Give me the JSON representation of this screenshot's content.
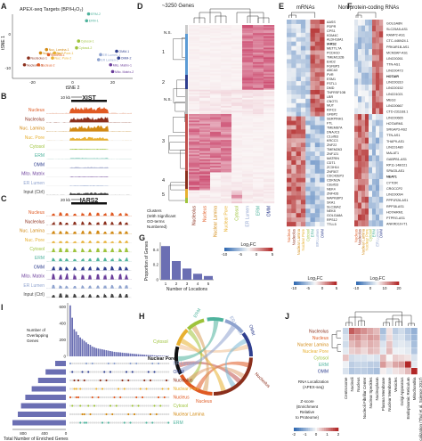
{
  "panel_letters": [
    "A",
    "B",
    "C",
    "D",
    "E",
    "F",
    "G",
    "H",
    "I",
    "J"
  ],
  "tracks": [
    "Nucleus",
    "Nucleolus",
    "Nuc. Lamina",
    "Nuc. Pore",
    "Cytosol",
    "ERM",
    "OMM",
    "Mito. Matrix",
    "ER Lumen",
    "Input (Ctrl)"
  ],
  "track_colors": [
    "#e05a23",
    "#8b2f1c",
    "#d28a14",
    "#e8b030",
    "#9ec33b",
    "#4fb39d",
    "#2f3f8f",
    "#6a3d9a",
    "#8fa3cf",
    "#444444"
  ],
  "panel_a": {
    "title": "APEX-seq Targets (BP/H₂O₂)",
    "xlabel": "tSNE 2",
    "ylabel": "tSNE 1",
    "xticks": [
      "-20",
      "0",
      "20"
    ],
    "yticks": [
      "0",
      "-10"
    ],
    "points": [
      {
        "label": "Nucleolus-1",
        "x": -22,
        "y": -7,
        "color": "#8b2f1c"
      },
      {
        "label": "Nucleolus-2",
        "x": -24,
        "y": -9,
        "color": "#8b2f1c"
      },
      {
        "label": "Nuc. Lamina-1",
        "x": -13,
        "y": -4.5,
        "color": "#d28a14"
      },
      {
        "label": "Nuc. Lamina-2",
        "x": -16,
        "y": -5.5,
        "color": "#d28a14"
      },
      {
        "label": "Nucleus-1",
        "x": -12,
        "y": -6,
        "color": "#e05a23"
      },
      {
        "label": "Nucleus-2",
        "x": -17,
        "y": -9,
        "color": "#e05a23"
      },
      {
        "label": "Nuc. Pore-1",
        "x": -9,
        "y": -5.5,
        "color": "#e8b030"
      },
      {
        "label": "Nuc. Pore-2",
        "x": -10,
        "y": -7,
        "color": "#e8b030"
      },
      {
        "label": "Cytosol-1",
        "x": 3,
        "y": -2,
        "color": "#9ec33b"
      },
      {
        "label": "Cytosol-2",
        "x": 2,
        "y": -4,
        "color": "#9ec33b"
      },
      {
        "label": "ERM-1",
        "x": 7,
        "y": 4,
        "color": "#4fb39d"
      },
      {
        "label": "ERM-2",
        "x": 8,
        "y": 6,
        "color": "#4fb39d"
      },
      {
        "label": "ER Lumen-1",
        "x": 14,
        "y": -6,
        "color": "#8fa3cf"
      },
      {
        "label": "ER Lumen-2",
        "x": 13,
        "y": -7.5,
        "color": "#8fa3cf"
      },
      {
        "label": "OMM-1",
        "x": 22,
        "y": -5,
        "color": "#2f3f8f"
      },
      {
        "label": "OMM-2",
        "x": 23,
        "y": -7,
        "color": "#2f3f8f"
      },
      {
        "label": "Mito. Matrix-1",
        "x": 19,
        "y": -9,
        "color": "#6a3d9a"
      },
      {
        "label": "Mito. Matrix-2",
        "x": 20,
        "y": -11,
        "color": "#6a3d9a"
      }
    ]
  },
  "panel_b": {
    "gene": "XIST",
    "scale": "10 kb"
  },
  "panel_c": {
    "gene": "IARS2",
    "scale": "20 kb"
  },
  "panel_d": {
    "title": "~3250 Genes",
    "ns_label": "N.S.",
    "cluster_nums": [
      "1",
      "2",
      "3",
      "4",
      "5"
    ],
    "clusters_caption": [
      "Clusters",
      "(With Significant",
      "GO-terms",
      "Numbered)"
    ],
    "columns": [
      "Nucleolus",
      "Nucleus",
      "Nuclear Lamina",
      "Nuclear Pore",
      "Cytosol",
      "ER Lumen",
      "ERM",
      "OMM"
    ]
  },
  "panel_e": {
    "title": "mRNAs",
    "genes": [
      "AASS",
      "PDPR",
      "CPS1",
      "KDM4C",
      "ALDH18A1",
      "IARS2",
      "METTL7A",
      "PCDH10",
      "TMEM132B",
      "EHD2",
      "FGFBP3",
      "ABCA3",
      "PVR",
      "ESM1",
      "FSTL1",
      "DMD",
      "TNFRSF10B",
      "LBR",
      "CNOT1",
      "MUT",
      "KIFC3",
      "GFBP2",
      "SERPINH1",
      "FTL",
      "TMEM87A",
      "DNAJC3",
      "C1orf63",
      "KRCC3",
      "ZNF22",
      "TMEM263",
      "ZNF121",
      "MATRIN",
      "CDT1",
      "ZC3H14",
      "ZNF507",
      "CDC42EP3",
      "CDKN2A",
      "C8orf33",
      "NEK4",
      "ZNF426",
      "MAPK8IP3",
      "SKA1",
      "SLC38A2",
      "NEK8",
      "GOLGA8A",
      "RPS12",
      "TTLL5"
    ],
    "colorbar_title": "Log₂FC",
    "colorbar_ticks": [
      "-10",
      "-5",
      "0",
      "5"
    ]
  },
  "panel_f": {
    "title": "Non-protein-coding RNAs",
    "genes": [
      "GOLGA8N",
      "SLC25A5-AS1",
      "RAMP2-AS1",
      "CTC-446N24.1",
      "PRKAR1B-AS1",
      "MCM3AP-AS1",
      "LINC00261",
      "TTN-AS1",
      "LINC00473",
      "HOTAIR",
      "LINC00310",
      "LINC00152",
      "LINC01021",
      "MEG3",
      "LINC00667",
      "CTD-2311E8.1",
      "LINC00665",
      "HOTAIRM1",
      "SRGAP3-AS2",
      "TTN-AS1",
      "THAP9-AS1",
      "LINC01480",
      "MALAT1",
      "GABPB1-AS1",
      "RP11-148O21",
      "SPAG5-AS1",
      "NEAT1",
      "CYTOR",
      "CROCCP2",
      "LINC00094",
      "PPP1R26-AS1",
      "RPP38-AS1",
      "HOTAIRM1",
      "PTPRG-AS1",
      "ANKRD10-IT1"
    ],
    "colorbar_title": "Log₂FC",
    "colorbar_ticks": [
      "-10",
      "0",
      "10",
      "20"
    ]
  },
  "panel_g": {
    "xlabel": "Number of Locations",
    "ylabel": "Proportion of Genes",
    "xticks": [
      "1",
      "2",
      "3",
      "4",
      "5"
    ],
    "yticks": [
      "0",
      "0.2",
      "0.4"
    ]
  },
  "panel_h": {
    "colorbar_title": "Log₂FC",
    "colorbar_ticks": [
      "-10",
      "-5",
      "0",
      "5"
    ],
    "labels": [
      "ERM",
      "ER Lumen",
      "Cytosol",
      "Nuclear Pore",
      "Nucleolus",
      "Nucleus",
      "OMM"
    ]
  },
  "panel_i": {
    "ylabel": [
      "Number of",
      "Overlapping",
      "Genes"
    ],
    "yticks": [
      "0",
      "200",
      "400",
      "600"
    ],
    "xlabel": "Total Number of Enriched Genes",
    "xticks": [
      "0",
      "400",
      "800"
    ],
    "rows": [
      "ER Lumen",
      "OMM",
      "Nucleolus",
      "Nuclear Pore",
      "Nucleus",
      "Cytosol",
      "Nuclear Lamina",
      "ERM"
    ],
    "row_colors": [
      "#8fa3cf",
      "#2f3f8f",
      "#8b2f1c",
      "#e8b030",
      "#e05a23",
      "#9ec33b",
      "#d28a14",
      "#4fb39d"
    ]
  },
  "panel_j": {
    "rows": [
      "Nucleolus",
      "Nucleus",
      "Nuclear Lamina",
      "Nuclear Pore",
      "Cytosol",
      "ERM",
      "OMM"
    ],
    "row_colors": [
      "#8b2f1c",
      "#e05a23",
      "#d28a14",
      "#e8b030",
      "#9ec33b",
      "#4fb39d",
      "#2f3f8f"
    ],
    "columns": [
      "Centrosome",
      "Nucleoli",
      "Nucleus",
      "Nucleoli Fibrillar Center",
      "Nuclear Speckles",
      "Nucleoplasm",
      "Plasma Membrane",
      "Nuclear Membrane",
      "Vesicles",
      "Golgi Apparatus",
      "Endoplasmic Reticulum",
      "Mitochondria",
      "Protein Localization (Thul et al. Science 2017)"
    ],
    "legend_title": [
      "RNA Localization",
      "(APEX-seq)"
    ],
    "zscore_caption": [
      "Z-score",
      "(Enrichment",
      "Relative",
      "to Proteome)"
    ],
    "colorbar_ticks": [
      "-2",
      "-1",
      "0",
      "1",
      "2"
    ]
  },
  "chart_data": [
    {
      "type": "scatter",
      "panel": "A",
      "title": "APEX-seq Targets (BP/H₂O₂)",
      "xlabel": "tSNE 2",
      "ylabel": "tSNE 1",
      "xlim": [
        -30,
        30
      ],
      "ylim": [
        -13,
        8
      ]
    },
    {
      "type": "bar",
      "panel": "G",
      "categories": [
        "1",
        "2",
        "3",
        "4",
        "5"
      ],
      "values": [
        0.45,
        0.25,
        0.15,
        0.08,
        0.05
      ],
      "xlabel": "Number of Locations",
      "ylabel": "Proportion of Genes",
      "ylim": [
        0,
        0.5
      ]
    },
    {
      "type": "bar",
      "panel": "I-top",
      "ylabel": "Number of Overlapping Genes",
      "values": [
        620,
        470,
        330,
        300,
        260,
        230,
        210,
        190,
        170,
        150,
        140,
        120,
        110,
        100,
        95,
        90,
        85,
        80,
        75,
        70,
        65,
        60,
        55,
        52,
        50,
        48,
        45,
        42,
        40,
        38,
        35,
        33,
        30,
        28,
        26,
        24,
        22,
        20,
        18,
        16,
        15,
        14,
        12,
        11,
        10,
        9,
        8,
        7,
        6,
        5
      ],
      "ylim": [
        0,
        650
      ]
    },
    {
      "type": "bar",
      "panel": "I-left",
      "xlabel": "Total Number of Enriched Genes",
      "categories": [
        "ER Lumen",
        "OMM",
        "Nucleolus",
        "Nuclear Pore",
        "Nucleus",
        "Cytosol",
        "Nuclear Lamina",
        "ERM"
      ],
      "values": [
        200,
        380,
        520,
        640,
        760,
        840,
        900,
        1000
      ],
      "xlim": [
        0,
        1000
      ]
    },
    {
      "type": "heatmap",
      "panel": "J",
      "rows": [
        "Nucleolus",
        "Nucleus",
        "Nuclear Lamina",
        "Nuclear Pore",
        "Cytosol",
        "ERM",
        "OMM"
      ],
      "columns": [
        "Centrosome",
        "Nucleoli",
        "Nucleus",
        "Nucleoli Fibrillar Center",
        "Nuclear Speckles",
        "Nucleoplasm",
        "Plasma Membrane",
        "Nuclear Membrane",
        "Vesicles",
        "Golgi Apparatus",
        "Endoplasmic Reticulum",
        "Mitochondria"
      ],
      "values": [
        [
          -0.5,
          1.5,
          1.2,
          1.0,
          0.8,
          0.6,
          -0.8,
          0.2,
          -0.6,
          -0.4,
          -0.7,
          -1.0
        ],
        [
          -0.3,
          0.9,
          1.0,
          0.7,
          0.9,
          0.8,
          -0.6,
          0.3,
          -0.4,
          -0.3,
          -0.6,
          -0.9
        ],
        [
          -0.4,
          0.6,
          0.8,
          0.5,
          0.7,
          0.6,
          -0.3,
          0.5,
          -0.3,
          -0.2,
          -0.3,
          -0.8
        ],
        [
          -0.2,
          0.4,
          0.5,
          0.3,
          0.6,
          0.5,
          -0.2,
          0.6,
          -0.1,
          -0.1,
          -0.2,
          -0.7
        ],
        [
          0.5,
          -0.4,
          -0.3,
          -0.3,
          -0.2,
          -0.3,
          0.6,
          0.0,
          0.4,
          0.3,
          0.2,
          -0.3
        ],
        [
          -0.1,
          -0.6,
          -0.5,
          -0.5,
          -0.6,
          -0.6,
          0.9,
          0.4,
          0.8,
          0.9,
          2.0,
          -0.2
        ],
        [
          -0.3,
          -0.7,
          -0.6,
          -0.6,
          -0.7,
          -0.8,
          0.1,
          -0.2,
          0.2,
          0.3,
          0.6,
          2.2
        ]
      ],
      "zlim": [
        -2,
        2
      ]
    }
  ]
}
